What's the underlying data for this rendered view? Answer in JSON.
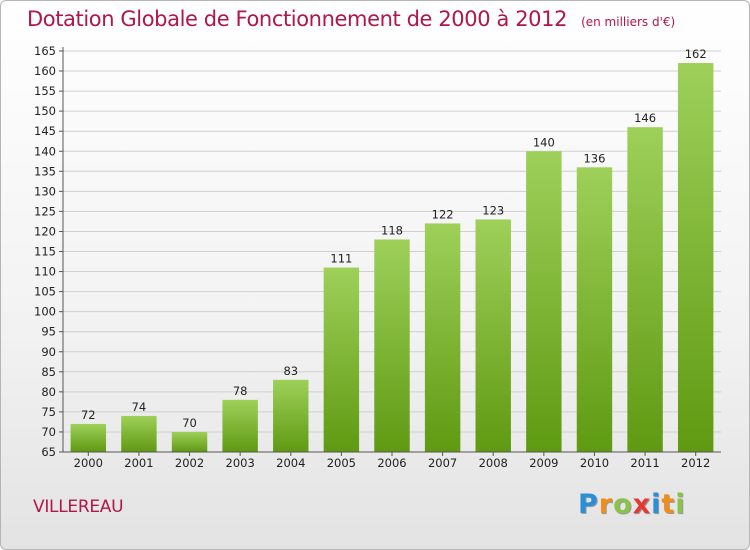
{
  "title": "Dotation Globale de Fonctionnement de 2000 à 2012",
  "unit": "(en milliers d'€)",
  "commune": "VILLEREAU",
  "logo": {
    "letters": [
      "P",
      "r",
      "o",
      "x",
      "i",
      "t",
      "i"
    ],
    "colors": [
      "#2a8fd6",
      "#f08c1a",
      "#8bc34a",
      "#e53935",
      "#2a8fd6",
      "#f08c1a",
      "#8bc34a"
    ]
  },
  "colors": {
    "bar_light": "#9ed05a",
    "bar_dark": "#5f9a12",
    "grid": "#d0d0d0",
    "axis": "#555555",
    "title": "#b0164a"
  },
  "chart_data": {
    "type": "bar",
    "title": "Dotation Globale de Fonctionnement de 2000 à 2012",
    "subtitle": "(en milliers d'€)",
    "categories": [
      "2000",
      "2001",
      "2002",
      "2003",
      "2004",
      "2005",
      "2006",
      "2007",
      "2008",
      "2009",
      "2010",
      "2011",
      "2012"
    ],
    "values": [
      72,
      74,
      70,
      78,
      83,
      111,
      118,
      122,
      123,
      140,
      136,
      146,
      162
    ],
    "ylim": [
      65,
      165
    ],
    "ytick_step": 5,
    "grid": true,
    "data_labels": true
  }
}
